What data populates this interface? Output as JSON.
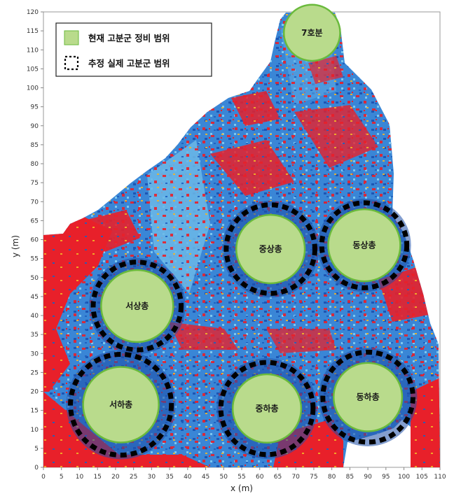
{
  "axes": {
    "x_title": "x (m)",
    "y_title": "y (m)",
    "x_range": [
      0,
      110
    ],
    "y_range": [
      0,
      120
    ],
    "x_ticks": [
      "0",
      "5",
      "10",
      "15",
      "20",
      "25",
      "30",
      "35",
      "40",
      "45",
      "50",
      "55",
      "60",
      "65",
      "70",
      "75",
      "80",
      "85",
      "90",
      "95",
      "100",
      "105",
      "110"
    ],
    "y_ticks": [
      "0",
      "5",
      "10",
      "15",
      "20",
      "25",
      "30",
      "35",
      "40",
      "45",
      "50",
      "55",
      "60",
      "65",
      "70",
      "75",
      "80",
      "85",
      "90",
      "95",
      "100",
      "105",
      "110",
      "115",
      "120"
    ]
  },
  "legend": {
    "placement": "top-left",
    "current_range_label": "현재 고분군 정비 범위",
    "estimated_range_label": "추정 실제 고분군 범위"
  },
  "mounds": [
    {
      "label": "7호분",
      "cx": 74.5,
      "cy": 114.5,
      "r": 7.8,
      "estimated_r": null
    },
    {
      "label": "중상총",
      "cx": 63,
      "cy": 57.5,
      "r": 9.5,
      "estimated_r": 12.3
    },
    {
      "label": "동상총",
      "cx": 89,
      "cy": 58.5,
      "r": 10,
      "estimated_r": 11.8
    },
    {
      "label": "서상총",
      "cx": 26,
      "cy": 42.5,
      "r": 10,
      "estimated_r": 12.2
    },
    {
      "label": "서하총",
      "cx": 21.5,
      "cy": 16.5,
      "r": 10.5,
      "estimated_r": 14
    },
    {
      "label": "중하총",
      "cx": 62,
      "cy": 15.5,
      "r": 9.5,
      "estimated_r": 12.8
    },
    {
      "label": "동하총",
      "cx": 90,
      "cy": 18.5,
      "r": 9.5,
      "estimated_r": 12.5
    }
  ],
  "colors": {
    "current_fill": "#b9db8c",
    "current_stroke": "#6aba3c",
    "estimated_stroke": "#000000",
    "survey_red": "#e8202a",
    "survey_blue": "#2a6fc7",
    "survey_lightblue": "#4fa8e0"
  }
}
